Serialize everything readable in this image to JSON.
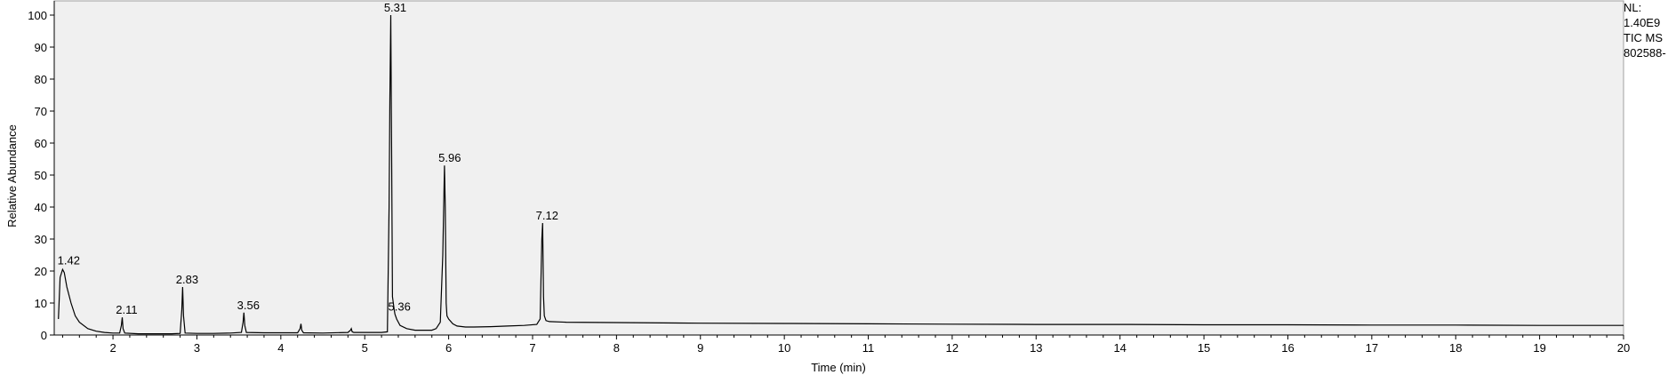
{
  "chart_data": {
    "type": "line",
    "xlabel": "Time (min)",
    "ylabel": "Relative Abundance",
    "xlim": [
      1.3,
      20
    ],
    "ylim": [
      0,
      100
    ],
    "x_ticks": [
      2,
      3,
      4,
      5,
      6,
      7,
      8,
      9,
      10,
      11,
      12,
      13,
      14,
      15,
      16,
      17,
      18,
      19,
      20
    ],
    "y_ticks": [
      0,
      10,
      20,
      30,
      40,
      50,
      60,
      70,
      80,
      90,
      100
    ],
    "info_lines": [
      "NL:",
      "1.40E9",
      "TIC  MS",
      "802588-"
    ],
    "peak_labels": [
      {
        "x": 1.42,
        "y": 21,
        "label": "1.42"
      },
      {
        "x": 2.11,
        "y": 5.5,
        "label": "2.11"
      },
      {
        "x": 2.83,
        "y": 15,
        "label": "2.83"
      },
      {
        "x": 3.56,
        "y": 7,
        "label": "3.56"
      },
      {
        "x": 5.31,
        "y": 100,
        "label": "5.31"
      },
      {
        "x": 5.36,
        "y": 6.5,
        "label": "5.36"
      },
      {
        "x": 5.96,
        "y": 53,
        "label": "5.96"
      },
      {
        "x": 7.12,
        "y": 35,
        "label": "7.12"
      }
    ],
    "series": [
      {
        "color": "#000000",
        "x": [
          1.35,
          1.37,
          1.4,
          1.42,
          1.45,
          1.5,
          1.55,
          1.6,
          1.7,
          1.8,
          1.9,
          2.0,
          2.08,
          2.1,
          2.11,
          2.12,
          2.14,
          2.3,
          2.5,
          2.7,
          2.8,
          2.82,
          2.83,
          2.84,
          2.86,
          3.0,
          3.2,
          3.4,
          3.53,
          3.55,
          3.56,
          3.57,
          3.59,
          3.8,
          4.0,
          4.2,
          4.23,
          4.24,
          4.25,
          4.27,
          4.5,
          4.8,
          4.83,
          4.84,
          4.85,
          4.87,
          5.0,
          5.2,
          5.27,
          5.29,
          5.3,
          5.31,
          5.32,
          5.33,
          5.35,
          5.36,
          5.38,
          5.42,
          5.5,
          5.6,
          5.7,
          5.8,
          5.85,
          5.9,
          5.93,
          5.95,
          5.96,
          5.97,
          5.98,
          6.0,
          6.05,
          6.1,
          6.2,
          6.3,
          6.5,
          6.7,
          6.9,
          7.05,
          7.09,
          7.11,
          7.12,
          7.13,
          7.14,
          7.16,
          7.2,
          7.4,
          8.0,
          9.0,
          10.0,
          11.0,
          12.0,
          13.0,
          14.0,
          15.0,
          16.0,
          17.0,
          18.0,
          19.0,
          20.0
        ],
        "y": [
          5,
          18,
          20.5,
          19.5,
          15,
          10,
          6,
          4,
          2,
          1.2,
          0.8,
          0.6,
          0.6,
          3,
          5.5,
          2,
          0.6,
          0.4,
          0.4,
          0.4,
          0.5,
          8,
          15,
          6,
          0.6,
          0.5,
          0.5,
          0.6,
          0.8,
          4,
          7,
          3,
          0.8,
          0.7,
          0.7,
          0.7,
          2,
          3.5,
          1.5,
          0.7,
          0.6,
          0.8,
          1.5,
          2,
          1,
          0.8,
          0.8,
          0.8,
          1.0,
          40,
          74,
          100,
          60,
          12,
          8,
          6.5,
          5,
          3,
          2,
          1.5,
          1.5,
          1.5,
          2,
          4,
          25,
          53,
          40,
          10,
          6,
          5,
          3.5,
          2.8,
          2.5,
          2.5,
          2.6,
          2.8,
          3,
          3.3,
          5,
          30,
          35,
          12,
          6,
          4.5,
          4.2,
          4,
          3.9,
          3.7,
          3.6,
          3.5,
          3.4,
          3.3,
          3.3,
          3.2,
          3.2,
          3.1,
          3.1,
          3.0,
          3.0
        ]
      }
    ]
  }
}
